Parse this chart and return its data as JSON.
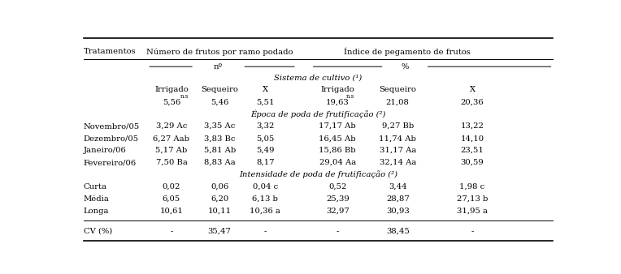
{
  "col_headers": [
    "Irrigado",
    "Sequeiro",
    "X̅",
    "Irrigado",
    "Sequeiro",
    "X̅"
  ],
  "section1_header": "Sistema de cultivo (¹)",
  "section2_header": "Época de poda de frutificação (²)",
  "section3_header": "Intensidade de poda de frutificação (²)",
  "sistema_vals": [
    "5,56",
    "5,46",
    "5,51",
    "19,63",
    "21,08",
    "20,36"
  ],
  "sistema_sup": [
    "n.s",
    "",
    "",
    "n.s",
    "",
    ""
  ],
  "epoca_rows": [
    [
      "Novembro/05",
      "3,29 Ac",
      "3,35 Ac",
      "3,32",
      "17,17 Ab",
      "9,27 Bb",
      "13,22"
    ],
    [
      "Dezembro/05",
      "6,27 Aab",
      "3,83 Bc",
      "5,05",
      "16,45 Ab",
      "11,74 Ab",
      "14,10"
    ],
    [
      "Janeiro/06",
      "5,17 Ab",
      "5,81 Ab",
      "5,49",
      "15,86 Bb",
      "31,17 Aa",
      "23,51"
    ],
    [
      "Fevereiro/06",
      "7,50 Ba",
      "8,83 Aa",
      "8,17",
      "29,04 Aa",
      "32,14 Aa",
      "30,59"
    ]
  ],
  "intensidade_rows": [
    [
      "Curta",
      "0,02",
      "0,06",
      "0,04 c",
      "0,52",
      "3,44",
      "1,98 c"
    ],
    [
      "Média",
      "6,05",
      "6,20",
      "6,13 b",
      "25,39",
      "28,87",
      "27,13 b"
    ],
    [
      "Longa",
      "10,61",
      "10,11",
      "10,36 a",
      "32,97",
      "30,93",
      "31,95 a"
    ]
  ],
  "cv_row": [
    "CV (%)",
    "-",
    "35,47",
    "-",
    "-",
    "38,45",
    "-"
  ]
}
